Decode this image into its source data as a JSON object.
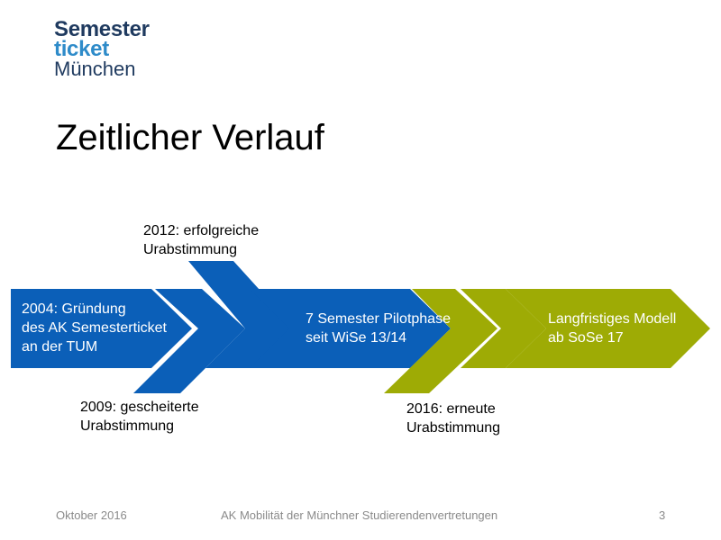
{
  "logo": {
    "line1": "Semester",
    "line2": "ticket",
    "line3": "München"
  },
  "title": "Zeitlicher Verlauf",
  "timeline": {
    "block1": [
      "2004: Gründung",
      "des AK Semesterticket",
      "an der TUM"
    ],
    "block2": [
      "7 Semester Pilotphase",
      "seit WiSe 13/14"
    ],
    "block3": [
      "Langfristiges Modell",
      "ab SoSe 17"
    ],
    "above_2012": [
      "2012: erfolgreiche",
      "Urabstimmung"
    ],
    "below_2009": [
      "2009: gescheiterte",
      "Urabstimmung"
    ],
    "below_2016": [
      "2016: erneute",
      "Urabstimmung"
    ]
  },
  "colors": {
    "blue": "#0b5fb8",
    "green": "#9eab05",
    "logo_dark": "#1f3a5f",
    "logo_light": "#2e8bc9"
  },
  "footer": {
    "date": "Oktober 2016",
    "center": "AK Mobilität der Münchner  Studierendenvertretungen",
    "page": "3"
  }
}
